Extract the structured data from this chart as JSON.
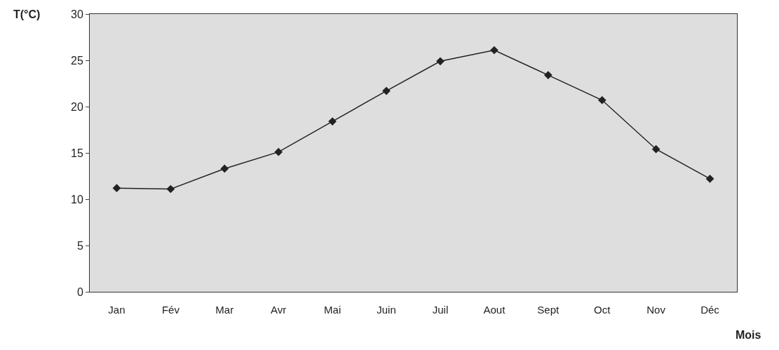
{
  "chart_data": {
    "type": "line",
    "xlabel": "Mois",
    "ylabel": "T(°C)",
    "categories": [
      "Jan",
      "Fév",
      "Mar",
      "Avr",
      "Mai",
      "Juin",
      "Juil",
      "Aout",
      "Sept",
      "Oct",
      "Nov",
      "Déc"
    ],
    "series": [
      {
        "color": "#222222",
        "values": [
          11.2,
          11.1,
          13.3,
          15.1,
          18.4,
          21.7,
          24.9,
          26.1,
          23.4,
          20.7,
          15.4,
          12.2
        ]
      }
    ],
    "ylim": [
      0,
      30
    ],
    "yticks": [
      0,
      5,
      10,
      15,
      20,
      25,
      30
    ],
    "grid": false,
    "marker": "diamond",
    "line_style": "solid"
  }
}
